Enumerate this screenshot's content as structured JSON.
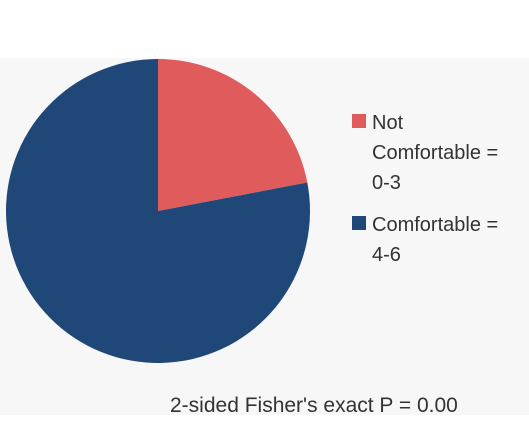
{
  "chart_data": {
    "type": "pie",
    "categories": [
      "Not Comfortable = 0-3",
      "Comfortable = 4-6"
    ],
    "values": [
      22,
      78
    ],
    "colors": [
      "#e05c5c",
      "#1f4879"
    ],
    "legend": "right",
    "annotation": "2-sided Fisher's exact P = 0.00"
  }
}
